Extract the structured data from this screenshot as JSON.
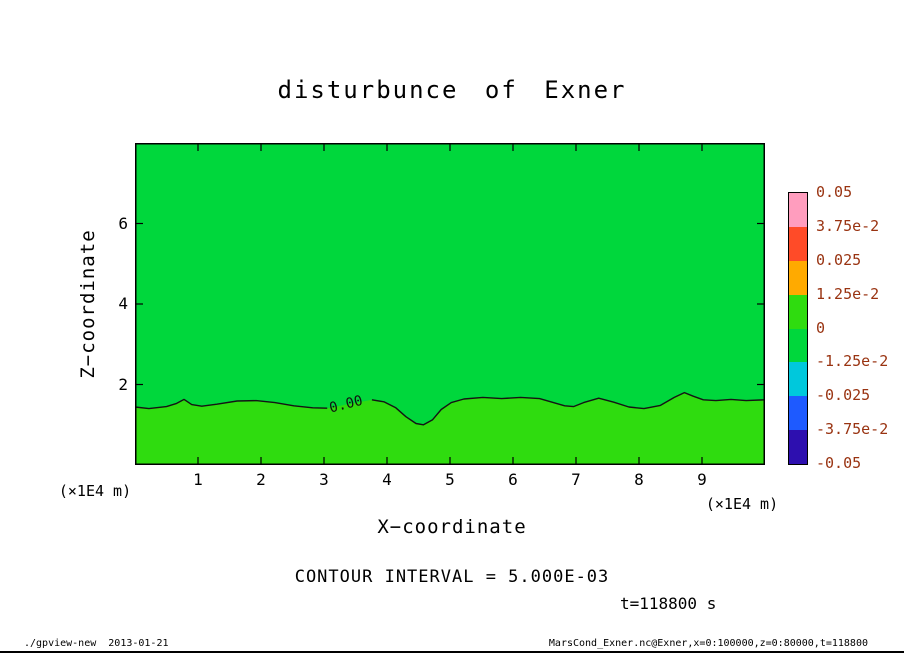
{
  "footer": {
    "left": "./gpview-new  2013-01-21",
    "right": "MarsCond_Exner.nc@Exner,x=0:100000,z=0:80000,t=118800"
  },
  "chart_data": {
    "type": "heatmap",
    "title": "disturbunce of Exner",
    "xlabel": "X−coordinate",
    "ylabel": "Z−coordinate",
    "x_unit_label": "(×1E4 m)",
    "y_unit_label": "(×1E4 m)",
    "xlim": [
      0,
      10
    ],
    "ylim": [
      0,
      8
    ],
    "xticks": [
      1,
      2,
      3,
      4,
      5,
      6,
      7,
      8,
      9
    ],
    "yticks": [
      2,
      4,
      6
    ],
    "grid": false,
    "contour_interval_text": "CONTOUR INTERVAL = 5.000E-03",
    "time_label": "t=118800 s",
    "fill": {
      "above_contour_color": "#00d73c",
      "below_contour_color": "#2fdc0f"
    },
    "contour": {
      "level_label": "0.00",
      "label_x": 3.35,
      "label_z": 1.5,
      "label_rotation_deg": -14,
      "color": "#141414",
      "segments": [
        [
          [
            0,
            1.44
          ],
          [
            0.22,
            1.4
          ],
          [
            0.5,
            1.45
          ],
          [
            0.66,
            1.53
          ],
          [
            0.78,
            1.63
          ],
          [
            0.9,
            1.5
          ],
          [
            1.06,
            1.46
          ],
          [
            1.3,
            1.51
          ],
          [
            1.62,
            1.59
          ],
          [
            1.92,
            1.6
          ],
          [
            2.22,
            1.55
          ],
          [
            2.52,
            1.47
          ],
          [
            2.82,
            1.42
          ],
          [
            3.05,
            1.41
          ]
        ],
        [
          [
            3.76,
            1.62
          ],
          [
            3.95,
            1.57
          ],
          [
            4.14,
            1.42
          ],
          [
            4.3,
            1.2
          ],
          [
            4.46,
            1.03
          ],
          [
            4.58,
            1.0
          ],
          [
            4.72,
            1.12
          ],
          [
            4.86,
            1.38
          ],
          [
            5.02,
            1.55
          ],
          [
            5.22,
            1.64
          ],
          [
            5.52,
            1.68
          ],
          [
            5.82,
            1.65
          ],
          [
            6.12,
            1.68
          ],
          [
            6.42,
            1.65
          ],
          [
            6.62,
            1.56
          ],
          [
            6.82,
            1.47
          ],
          [
            6.96,
            1.45
          ],
          [
            7.12,
            1.55
          ],
          [
            7.36,
            1.66
          ],
          [
            7.6,
            1.56
          ],
          [
            7.84,
            1.44
          ],
          [
            8.08,
            1.4
          ],
          [
            8.34,
            1.48
          ],
          [
            8.56,
            1.68
          ],
          [
            8.72,
            1.8
          ],
          [
            8.86,
            1.71
          ],
          [
            9.02,
            1.62
          ],
          [
            9.22,
            1.6
          ],
          [
            9.46,
            1.63
          ],
          [
            9.7,
            1.6
          ],
          [
            10,
            1.62
          ]
        ]
      ]
    },
    "colorbar": {
      "labels": [
        "0.05",
        "3.75e-2",
        "0.025",
        "1.25e-2",
        "0",
        "-1.25e-2",
        "-0.025",
        "-3.75e-2",
        "-0.05"
      ],
      "values_top_to_bottom": [
        0.05,
        0.0375,
        0.025,
        0.0125,
        0,
        -0.0125,
        -0.025,
        -0.0375,
        -0.05
      ],
      "colors_top_to_bottom": [
        "#ff9dbe",
        "#ff4b28",
        "#ffaa00",
        "#2fdc0f",
        "#00d73c",
        "#00c8dc",
        "#1e5aff",
        "#2d0faf"
      ],
      "label_color": "#993311"
    }
  }
}
